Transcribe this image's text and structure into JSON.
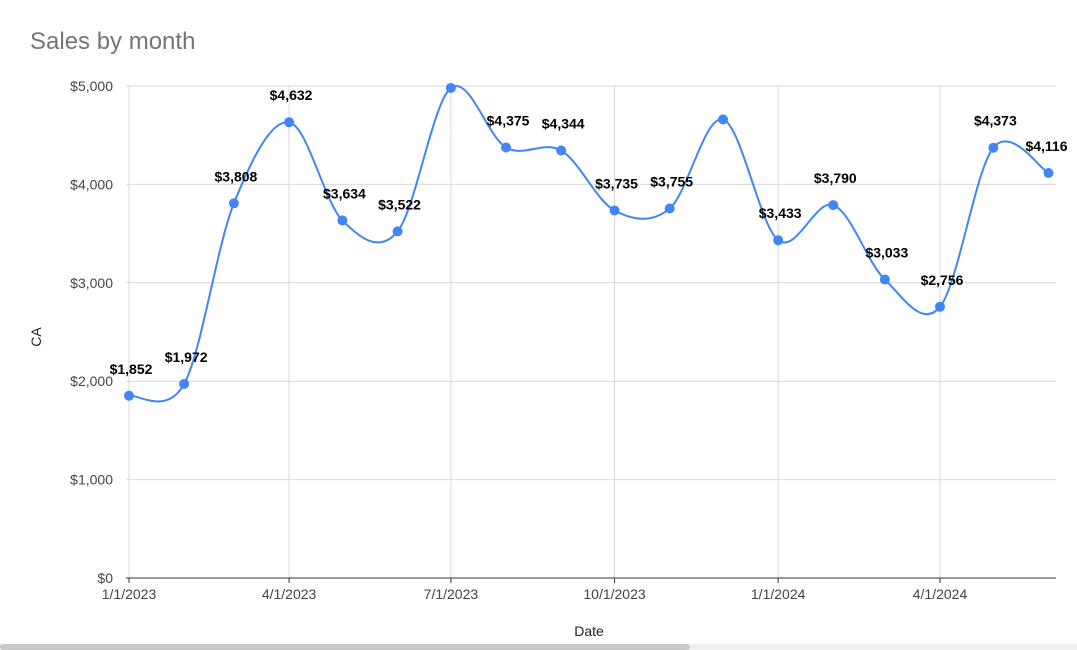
{
  "chart_data": {
    "type": "line",
    "title": "Sales by month",
    "xlabel": "Date",
    "ylabel": "CA",
    "ylim": [
      0,
      5000
    ],
    "yticks": [
      "$0",
      "$1,000",
      "$2,000",
      "$3,000",
      "$4,000",
      "$5,000"
    ],
    "yticks_values": [
      0,
      1000,
      2000,
      3000,
      4000,
      5000
    ],
    "xticks": [
      "1/1/2023",
      "4/1/2023",
      "7/1/2023",
      "10/1/2023",
      "1/1/2024",
      "4/1/2024"
    ],
    "xticks_dates": [
      "2023-01-01",
      "2023-04-01",
      "2023-07-01",
      "2023-10-01",
      "2024-01-01",
      "2024-04-01"
    ],
    "grid": true,
    "smooth": true,
    "line_color": "#4285f4",
    "series": [
      {
        "dates": [
          "2023-01-01",
          "2023-02-01",
          "2023-03-01",
          "2023-04-01",
          "2023-05-01",
          "2023-06-01",
          "2023-07-01",
          "2023-08-01",
          "2023-09-01",
          "2023-10-01",
          "2023-11-01",
          "2023-12-01",
          "2024-01-01",
          "2024-02-01",
          "2024-03-01",
          "2024-04-01",
          "2024-05-01",
          "2024-06-01"
        ],
        "values": [
          1852,
          1972,
          3808,
          4632,
          3634,
          3522,
          4980,
          4375,
          4344,
          3735,
          3755,
          4660,
          3433,
          3790,
          3033,
          2756,
          4373,
          4116
        ],
        "labels": [
          "$1,852",
          "$1,972",
          "$3,808",
          "$4,632",
          "$3,634",
          "$3,522",
          "",
          "$4,375",
          "$4,344",
          "$3,735",
          "$3,755",
          "",
          "$3,433",
          "$3,790",
          "$3,033",
          "$2,756",
          "$4,373",
          "$4,116"
        ]
      }
    ]
  }
}
